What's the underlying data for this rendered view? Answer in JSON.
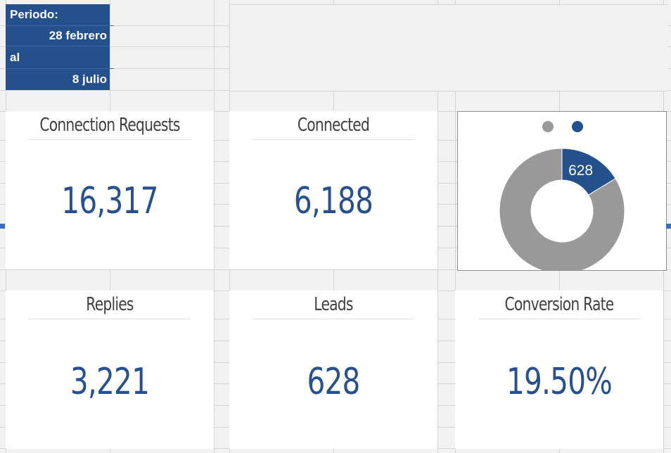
{
  "period": {
    "label": "Periodo:",
    "start": "28 febrero",
    "connector": "al",
    "end": "8 julio"
  },
  "cards": {
    "connection_requests": {
      "title": "Connection Requests",
      "value": "16,317"
    },
    "connected": {
      "title": "Connected",
      "value": "6,188"
    },
    "replies": {
      "title": "Replies",
      "value": "3,221"
    },
    "leads": {
      "title": "Leads",
      "value": "628"
    },
    "conversion_rate": {
      "title": "Conversion Rate",
      "value": "19.50%"
    }
  },
  "chart_data": {
    "type": "pie",
    "variant": "donut",
    "values": [
      628,
      3221
    ],
    "data_labels": [
      "628",
      ""
    ],
    "colors": [
      "#24508c",
      "#999999"
    ],
    "legend_placement": "top"
  }
}
